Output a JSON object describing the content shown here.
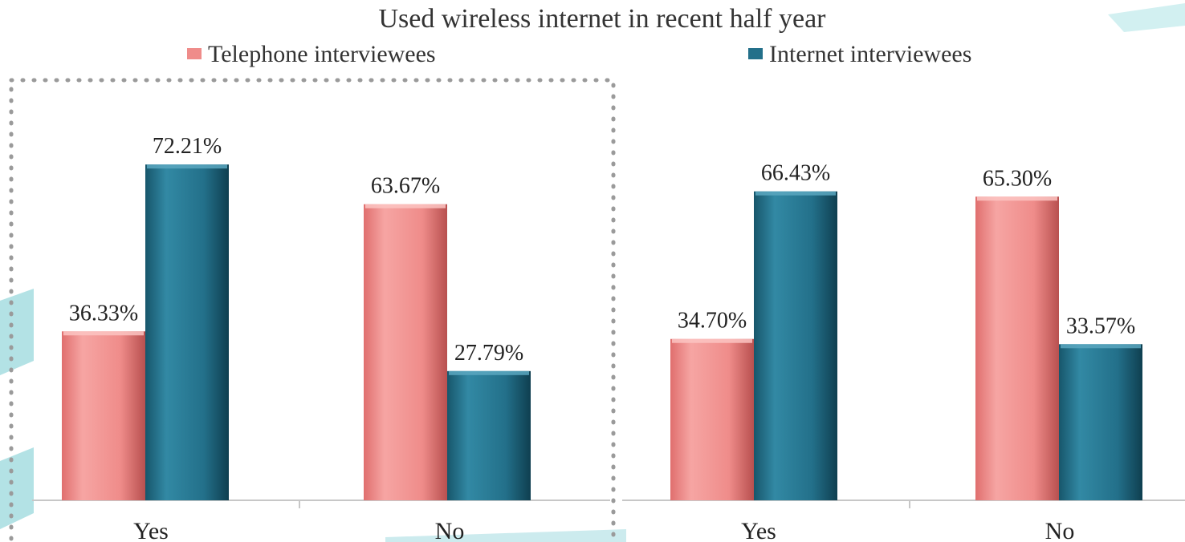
{
  "chart_data": {
    "type": "bar",
    "title": "Used wireless internet in recent half year",
    "legend": {
      "placement": "top",
      "entries": [
        "Telephone interviewees",
        "Internet interviewees"
      ]
    },
    "colors": {
      "telephone": "#ef8c8a",
      "internet": "#23708a",
      "accent": "#9fd8dc",
      "frame": "#9a9a9a"
    },
    "grid": false,
    "ylim": [
      0,
      100
    ],
    "groups": [
      {
        "categories": [
          "Yes",
          "No"
        ],
        "series": [
          {
            "name": "Telephone interviewees",
            "values": [
              36.33,
              63.67
            ],
            "labels": [
              "36.33%",
              "63.67%"
            ]
          },
          {
            "name": "Internet interviewees",
            "values": [
              72.21,
              27.79
            ],
            "labels": [
              "72.21%",
              "27.79%"
            ]
          }
        ]
      },
      {
        "categories": [
          "Yes",
          "No"
        ],
        "series": [
          {
            "name": "Telephone interviewees",
            "values": [
              34.7,
              65.3
            ],
            "labels": [
              "34.70%",
              "65.30%"
            ]
          },
          {
            "name": "Internet interviewees",
            "values": [
              66.43,
              33.57
            ],
            "labels": [
              "66.43%",
              "33.57%"
            ]
          }
        ]
      }
    ]
  }
}
